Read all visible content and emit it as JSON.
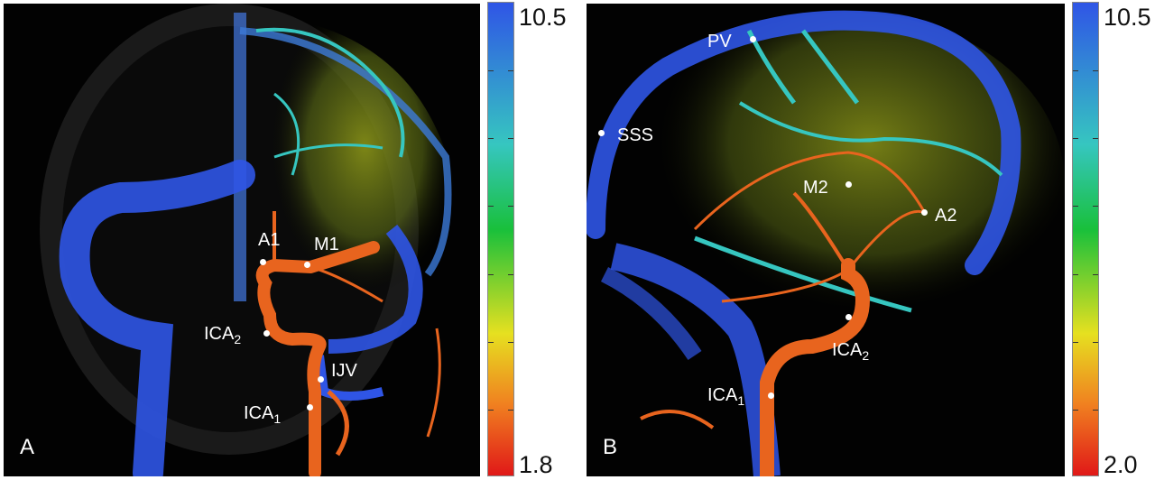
{
  "panel_a": {
    "letter": "A",
    "labels": [
      "A1",
      "M1",
      "ICA2",
      "IJV",
      "ICA1"
    ]
  },
  "panel_b": {
    "letter": "B",
    "labels": [
      "PV",
      "SSS",
      "M2",
      "A2",
      "ICA2",
      "ICA1"
    ]
  },
  "colorbar_a": {
    "max": "10.5",
    "min": "1.8"
  },
  "colorbar_b": {
    "max": "10.5",
    "min": "2.0"
  },
  "colors": {
    "artery": "#e8641e",
    "vein": "#2f55e6",
    "capillary": "#9aa020",
    "cyan": "#36c6c0"
  }
}
